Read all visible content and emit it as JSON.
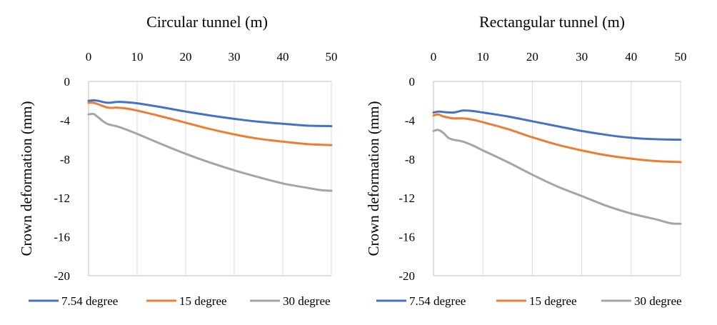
{
  "chart_data": [
    {
      "type": "line",
      "title": "Circular tunnel (m)",
      "xlabel": "Circular tunnel (m)",
      "ylabel": "Crown deformation (mm)",
      "xlim": [
        0,
        50
      ],
      "ylim": [
        -20,
        0
      ],
      "x_ticks": [
        "0",
        "10",
        "20",
        "30",
        "40",
        "50"
      ],
      "y_ticks": [
        "0",
        "-4",
        "-8",
        "-12",
        "-16",
        "-20"
      ],
      "x_axis_position": "top",
      "grid": "vertical",
      "legend_position": "bottom",
      "series": [
        {
          "name": "7.54 degree",
          "color": "#4472C4",
          "x": [
            0,
            1,
            2,
            4,
            6,
            8,
            10,
            15,
            20,
            25,
            30,
            35,
            40,
            45,
            50
          ],
          "y": [
            -2.0,
            -1.95,
            -2.0,
            -2.2,
            -2.1,
            -2.15,
            -2.25,
            -2.65,
            -3.1,
            -3.5,
            -3.85,
            -4.15,
            -4.35,
            -4.55,
            -4.6
          ]
        },
        {
          "name": "15 degree",
          "color": "#ED7D31",
          "x": [
            0,
            1,
            2,
            4,
            6,
            8,
            10,
            15,
            20,
            25,
            30,
            35,
            40,
            45,
            50
          ],
          "y": [
            -2.2,
            -2.2,
            -2.35,
            -2.7,
            -2.7,
            -2.8,
            -3.0,
            -3.6,
            -4.25,
            -4.9,
            -5.45,
            -5.9,
            -6.2,
            -6.45,
            -6.55
          ]
        },
        {
          "name": "30 degree",
          "color": "#A5A5A5",
          "x": [
            0,
            1,
            2,
            3,
            4,
            6,
            8,
            10,
            15,
            20,
            25,
            30,
            35,
            40,
            45,
            48,
            50
          ],
          "y": [
            -3.4,
            -3.35,
            -3.7,
            -4.1,
            -4.4,
            -4.65,
            -5.0,
            -5.4,
            -6.45,
            -7.45,
            -8.35,
            -9.15,
            -9.85,
            -10.5,
            -10.95,
            -11.2,
            -11.25
          ]
        }
      ]
    },
    {
      "type": "line",
      "title": "Rectangular tunnel (m)",
      "xlabel": "Rectangular tunnel (m)",
      "ylabel": "Crown deformation (mm)",
      "xlim": [
        0,
        50
      ],
      "ylim": [
        -20,
        0
      ],
      "x_ticks": [
        "0",
        "10",
        "20",
        "30",
        "40",
        "50"
      ],
      "y_ticks": [
        "0",
        "-4",
        "-8",
        "-12",
        "-16",
        "-20"
      ],
      "x_axis_position": "top",
      "grid": "vertical",
      "legend_position": "bottom",
      "series": [
        {
          "name": "7.54 degree",
          "color": "#4472C4",
          "x": [
            0,
            1,
            2,
            4,
            6,
            8,
            10,
            15,
            20,
            25,
            30,
            35,
            40,
            45,
            50
          ],
          "y": [
            -3.2,
            -3.1,
            -3.15,
            -3.2,
            -3.0,
            -3.05,
            -3.2,
            -3.6,
            -4.1,
            -4.6,
            -5.1,
            -5.5,
            -5.8,
            -5.95,
            -6.0
          ]
        },
        {
          "name": "15 degree",
          "color": "#ED7D31",
          "x": [
            0,
            1,
            2,
            4,
            6,
            8,
            10,
            15,
            20,
            25,
            30,
            35,
            40,
            45,
            50
          ],
          "y": [
            -3.5,
            -3.4,
            -3.6,
            -3.8,
            -3.8,
            -3.95,
            -4.2,
            -4.9,
            -5.75,
            -6.5,
            -7.1,
            -7.6,
            -7.95,
            -8.2,
            -8.3
          ]
        },
        {
          "name": "30 degree",
          "color": "#A5A5A5",
          "x": [
            0,
            1,
            2,
            3,
            4,
            6,
            8,
            10,
            15,
            20,
            25,
            30,
            35,
            40,
            45,
            48,
            50
          ],
          "y": [
            -5.1,
            -5.0,
            -5.3,
            -5.8,
            -6.0,
            -6.2,
            -6.6,
            -7.1,
            -8.3,
            -9.6,
            -10.8,
            -11.8,
            -12.8,
            -13.6,
            -14.2,
            -14.6,
            -14.65
          ]
        }
      ]
    }
  ]
}
